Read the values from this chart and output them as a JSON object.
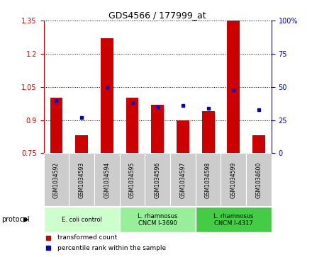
{
  "title": "GDS4566 / 177999_at",
  "samples": [
    "GSM1034592",
    "GSM1034593",
    "GSM1034594",
    "GSM1034595",
    "GSM1034596",
    "GSM1034597",
    "GSM1034598",
    "GSM1034599",
    "GSM1034600"
  ],
  "transformed_counts": [
    1.0,
    0.83,
    1.27,
    1.0,
    0.97,
    0.9,
    0.94,
    1.35,
    0.83
  ],
  "percentile_ranks": [
    40,
    27,
    50,
    38,
    35,
    36,
    34,
    48,
    33
  ],
  "bar_bottom": 0.75,
  "ylim_left": [
    0.75,
    1.35
  ],
  "ylim_right": [
    0,
    100
  ],
  "yticks_left": [
    0.75,
    0.9,
    1.05,
    1.2,
    1.35
  ],
  "yticks_right": [
    0,
    25,
    50,
    75,
    100
  ],
  "bar_color": "#cc0000",
  "dot_color": "#0000cc",
  "protocol_groups": [
    {
      "label": "E. coli control",
      "indices": [
        0,
        1,
        2
      ],
      "color": "#ccffcc"
    },
    {
      "label": "L. rhamnosus\nCNCM I-3690",
      "indices": [
        3,
        4,
        5
      ],
      "color": "#99ee99"
    },
    {
      "label": "L. rhamnosus\nCNCM I-4317",
      "indices": [
        6,
        7,
        8
      ],
      "color": "#44cc44"
    }
  ],
  "protocol_label": "protocol",
  "bar_width": 0.5,
  "sample_box_color": "#cccccc",
  "sample_box_edge": "#aaaaaa"
}
